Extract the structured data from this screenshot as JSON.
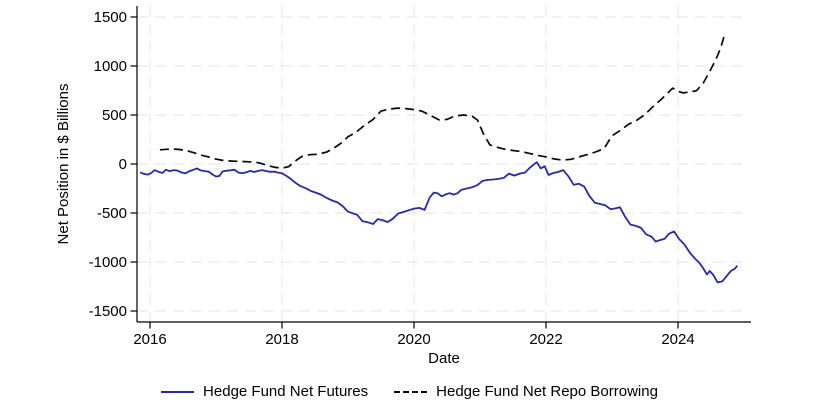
{
  "figure": {
    "background_color": "#ffffff",
    "axis_color": "#000000",
    "grid_color": "#e4e4e6"
  },
  "chart_data": {
    "type": "line",
    "title": "",
    "xlabel": "Date",
    "ylabel": "Net Position in $ Billions",
    "xlim": [
      2015.8,
      2025.12
    ],
    "ylim": [
      -1500,
      1500
    ],
    "xticks": [
      2016,
      2018,
      2020,
      2022,
      2024
    ],
    "xtick_labels": [
      "2016",
      "2018",
      "2020",
      "2022",
      "2024"
    ],
    "yticks": [
      1500,
      1000,
      500,
      0,
      -500,
      -1000,
      -1500
    ],
    "ytick_labels": [
      "1500",
      "1000",
      "500",
      "0",
      "-500",
      "-1000",
      "-1500"
    ],
    "grid": "dashed light-gray horizontal and vertical at labeled ticks",
    "legend_position": "bottom-center",
    "series": [
      {
        "id": "futures",
        "name": "Hedge Fund Net Futures",
        "color": "#2a2aa4",
        "style": "solid",
        "points": [
          [
            2015.85,
            -85
          ],
          [
            2015.9,
            -100
          ],
          [
            2015.97,
            -108
          ],
          [
            2016.02,
            -92
          ],
          [
            2016.07,
            -62
          ],
          [
            2016.13,
            -80
          ],
          [
            2016.19,
            -92
          ],
          [
            2016.24,
            -58
          ],
          [
            2016.3,
            -72
          ],
          [
            2016.36,
            -62
          ],
          [
            2016.42,
            -68
          ],
          [
            2016.48,
            -88
          ],
          [
            2016.54,
            -95
          ],
          [
            2016.6,
            -72
          ],
          [
            2016.66,
            -58
          ],
          [
            2016.71,
            -45
          ],
          [
            2016.77,
            -65
          ],
          [
            2016.83,
            -72
          ],
          [
            2016.89,
            -78
          ],
          [
            2016.95,
            -108
          ],
          [
            2017.0,
            -128
          ],
          [
            2017.05,
            -122
          ],
          [
            2017.1,
            -75
          ],
          [
            2017.16,
            -68
          ],
          [
            2017.22,
            -64
          ],
          [
            2017.28,
            -58
          ],
          [
            2017.34,
            -88
          ],
          [
            2017.4,
            -95
          ],
          [
            2017.46,
            -85
          ],
          [
            2017.52,
            -70
          ],
          [
            2017.58,
            -82
          ],
          [
            2017.64,
            -70
          ],
          [
            2017.7,
            -62
          ],
          [
            2017.76,
            -72
          ],
          [
            2017.82,
            -80
          ],
          [
            2017.88,
            -78
          ],
          [
            2017.94,
            -88
          ],
          [
            2018.0,
            -95
          ],
          [
            2018.06,
            -118
          ],
          [
            2018.12,
            -145
          ],
          [
            2018.2,
            -190
          ],
          [
            2018.28,
            -225
          ],
          [
            2018.36,
            -248
          ],
          [
            2018.44,
            -275
          ],
          [
            2018.52,
            -295
          ],
          [
            2018.6,
            -315
          ],
          [
            2018.68,
            -348
          ],
          [
            2018.76,
            -372
          ],
          [
            2018.84,
            -392
          ],
          [
            2018.92,
            -430
          ],
          [
            2019.0,
            -487
          ],
          [
            2019.08,
            -505
          ],
          [
            2019.14,
            -518
          ],
          [
            2019.22,
            -585
          ],
          [
            2019.3,
            -595
          ],
          [
            2019.38,
            -612
          ],
          [
            2019.45,
            -562
          ],
          [
            2019.52,
            -572
          ],
          [
            2019.6,
            -592
          ],
          [
            2019.68,
            -558
          ],
          [
            2019.76,
            -505
          ],
          [
            2019.84,
            -490
          ],
          [
            2019.92,
            -472
          ],
          [
            2020.0,
            -455
          ],
          [
            2020.08,
            -448
          ],
          [
            2020.16,
            -468
          ],
          [
            2020.24,
            -340
          ],
          [
            2020.3,
            -292
          ],
          [
            2020.36,
            -300
          ],
          [
            2020.42,
            -330
          ],
          [
            2020.48,
            -310
          ],
          [
            2020.54,
            -298
          ],
          [
            2020.6,
            -312
          ],
          [
            2020.66,
            -298
          ],
          [
            2020.72,
            -262
          ],
          [
            2020.8,
            -250
          ],
          [
            2020.88,
            -238
          ],
          [
            2020.96,
            -215
          ],
          [
            2021.04,
            -172
          ],
          [
            2021.12,
            -162
          ],
          [
            2021.2,
            -158
          ],
          [
            2021.28,
            -152
          ],
          [
            2021.36,
            -142
          ],
          [
            2021.44,
            -98
          ],
          [
            2021.52,
            -118
          ],
          [
            2021.6,
            -98
          ],
          [
            2021.68,
            -88
          ],
          [
            2021.76,
            -35
          ],
          [
            2021.82,
            -2
          ],
          [
            2021.86,
            18
          ],
          [
            2021.92,
            -45
          ],
          [
            2021.98,
            -22
          ],
          [
            2022.04,
            -112
          ],
          [
            2022.1,
            -95
          ],
          [
            2022.18,
            -82
          ],
          [
            2022.26,
            -62
          ],
          [
            2022.34,
            -125
          ],
          [
            2022.42,
            -212
          ],
          [
            2022.5,
            -202
          ],
          [
            2022.58,
            -232
          ],
          [
            2022.66,
            -330
          ],
          [
            2022.74,
            -395
          ],
          [
            2022.82,
            -408
          ],
          [
            2022.9,
            -422
          ],
          [
            2022.98,
            -462
          ],
          [
            2023.06,
            -452
          ],
          [
            2023.12,
            -442
          ],
          [
            2023.2,
            -540
          ],
          [
            2023.28,
            -618
          ],
          [
            2023.36,
            -632
          ],
          [
            2023.44,
            -652
          ],
          [
            2023.52,
            -718
          ],
          [
            2023.6,
            -742
          ],
          [
            2023.66,
            -792
          ],
          [
            2023.72,
            -778
          ],
          [
            2023.8,
            -762
          ],
          [
            2023.86,
            -712
          ],
          [
            2023.94,
            -688
          ],
          [
            2024.02,
            -768
          ],
          [
            2024.1,
            -822
          ],
          [
            2024.18,
            -905
          ],
          [
            2024.26,
            -968
          ],
          [
            2024.32,
            -1005
          ],
          [
            2024.38,
            -1062
          ],
          [
            2024.44,
            -1128
          ],
          [
            2024.48,
            -1092
          ],
          [
            2024.53,
            -1128
          ],
          [
            2024.6,
            -1208
          ],
          [
            2024.67,
            -1198
          ],
          [
            2024.74,
            -1142
          ],
          [
            2024.8,
            -1092
          ],
          [
            2024.86,
            -1068
          ],
          [
            2024.9,
            -1038
          ]
        ]
      },
      {
        "id": "repo",
        "name": "Hedge Fund Net Repo Borrowing",
        "color": "#0a0a0a",
        "style": "dashed",
        "points": [
          [
            2016.15,
            145
          ],
          [
            2016.25,
            150
          ],
          [
            2016.35,
            152
          ],
          [
            2016.45,
            148
          ],
          [
            2016.55,
            138
          ],
          [
            2016.65,
            118
          ],
          [
            2016.75,
            95
          ],
          [
            2016.87,
            75
          ],
          [
            2017.0,
            50
          ],
          [
            2017.12,
            35
          ],
          [
            2017.25,
            30
          ],
          [
            2017.4,
            26
          ],
          [
            2017.55,
            20
          ],
          [
            2017.65,
            12
          ],
          [
            2017.78,
            -15
          ],
          [
            2017.9,
            -35
          ],
          [
            2018.0,
            -42
          ],
          [
            2018.1,
            -28
          ],
          [
            2018.2,
            30
          ],
          [
            2018.3,
            78
          ],
          [
            2018.42,
            95
          ],
          [
            2018.55,
            100
          ],
          [
            2018.68,
            122
          ],
          [
            2018.8,
            168
          ],
          [
            2018.9,
            215
          ],
          [
            2019.0,
            278
          ],
          [
            2019.12,
            322
          ],
          [
            2019.25,
            395
          ],
          [
            2019.38,
            455
          ],
          [
            2019.5,
            540
          ],
          [
            2019.62,
            560
          ],
          [
            2019.75,
            570
          ],
          [
            2019.88,
            565
          ],
          [
            2020.0,
            555
          ],
          [
            2020.12,
            540
          ],
          [
            2020.25,
            495
          ],
          [
            2020.38,
            450
          ],
          [
            2020.5,
            455
          ],
          [
            2020.62,
            490
          ],
          [
            2020.75,
            500
          ],
          [
            2020.88,
            488
          ],
          [
            2020.96,
            450
          ],
          [
            2021.05,
            310
          ],
          [
            2021.15,
            195
          ],
          [
            2021.25,
            172
          ],
          [
            2021.38,
            150
          ],
          [
            2021.5,
            138
          ],
          [
            2021.62,
            128
          ],
          [
            2021.75,
            108
          ],
          [
            2021.88,
            88
          ],
          [
            2022.0,
            72
          ],
          [
            2022.12,
            52
          ],
          [
            2022.25,
            40
          ],
          [
            2022.38,
            48
          ],
          [
            2022.5,
            72
          ],
          [
            2022.62,
            95
          ],
          [
            2022.75,
            122
          ],
          [
            2022.88,
            158
          ],
          [
            2023.0,
            288
          ],
          [
            2023.12,
            340
          ],
          [
            2023.25,
            405
          ],
          [
            2023.38,
            448
          ],
          [
            2023.5,
            505
          ],
          [
            2023.62,
            585
          ],
          [
            2023.75,
            662
          ],
          [
            2023.85,
            728
          ],
          [
            2023.92,
            775
          ],
          [
            2024.0,
            742
          ],
          [
            2024.08,
            726
          ],
          [
            2024.18,
            735
          ],
          [
            2024.28,
            748
          ],
          [
            2024.38,
            822
          ],
          [
            2024.48,
            945
          ],
          [
            2024.58,
            1075
          ],
          [
            2024.65,
            1190
          ],
          [
            2024.71,
            1335
          ]
        ]
      }
    ]
  },
  "legend": {
    "items": [
      {
        "label": "Hedge Fund Net Futures"
      },
      {
        "label": "Hedge Fund Net Repo Borrowing"
      }
    ]
  }
}
